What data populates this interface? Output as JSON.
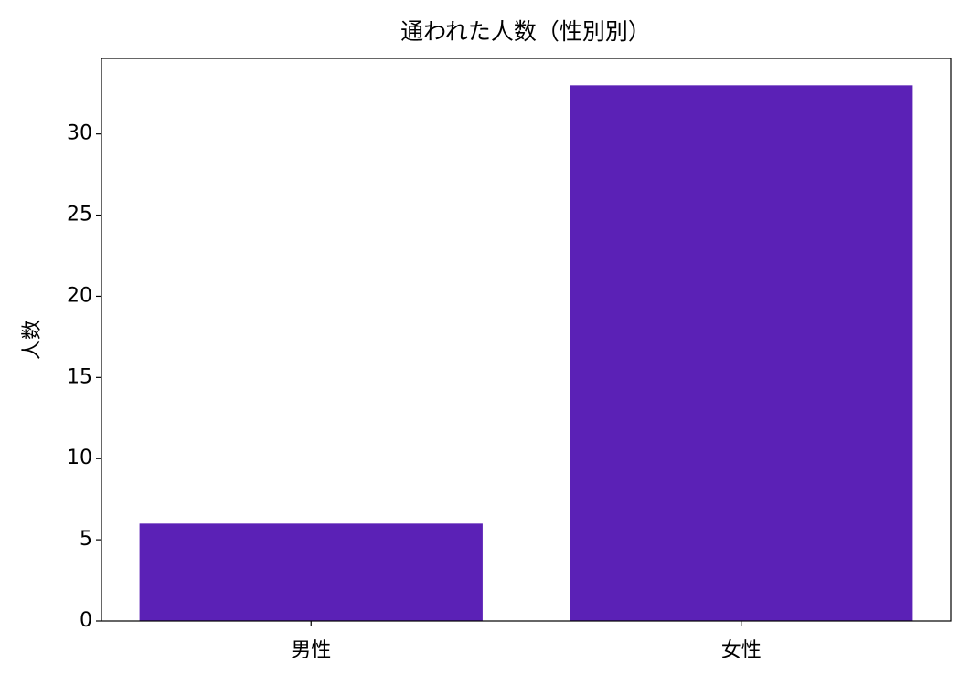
{
  "chart_data": {
    "type": "bar",
    "title": "通われた人数（性別別）",
    "y_label": "人数",
    "categories": [
      "男性",
      "女性"
    ],
    "values": [
      6,
      33
    ],
    "color": "#5b21b6",
    "ylim": [
      0,
      34.65
    ],
    "yticks": [
      0,
      5,
      10,
      15,
      20,
      25,
      30
    ],
    "grid": false
  }
}
